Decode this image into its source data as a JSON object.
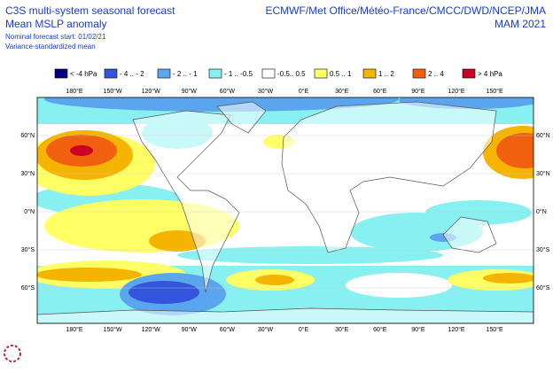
{
  "header": {
    "title": "C3S multi-system seasonal forecast",
    "subtitle": "Mean MSLP anomaly",
    "start": "Nominal forecast start: 01/02/21",
    "method": "Variance-standardized mean",
    "centres": "ECMWF/Met Office/Météo-France/CMCC/DWD/NCEP/JMA",
    "season": "MAM 2021"
  },
  "legend": [
    {
      "label": "< -4 hPa",
      "color": "#000080"
    },
    {
      "label": "- 4 .. - 2",
      "color": "#3355dd"
    },
    {
      "label": "- 2 .. - 1",
      "color": "#5aa5ee"
    },
    {
      "label": "- 1 .. -0.5",
      "color": "#88f0f0"
    },
    {
      "label": "-0.5.. 0.5",
      "color": "#ffffff"
    },
    {
      "label": "0.5 .. 1",
      "color": "#ffff66"
    },
    {
      "label": "1 .. 2",
      "color": "#f5b400"
    },
    {
      "label": "2 .. 4",
      "color": "#f06010"
    },
    {
      "label": "> 4 hPa",
      "color": "#cc0022"
    }
  ],
  "lon_labels": [
    "180°E",
    "150°W",
    "120°W",
    "90°W",
    "60°W",
    "30°W",
    "0°E",
    "30°E",
    "60°E",
    "90°E",
    "120°E",
    "150°E"
  ],
  "lat_labels": [
    "60°N",
    "30°N",
    "0°N",
    "30°S",
    "60°S"
  ]
}
